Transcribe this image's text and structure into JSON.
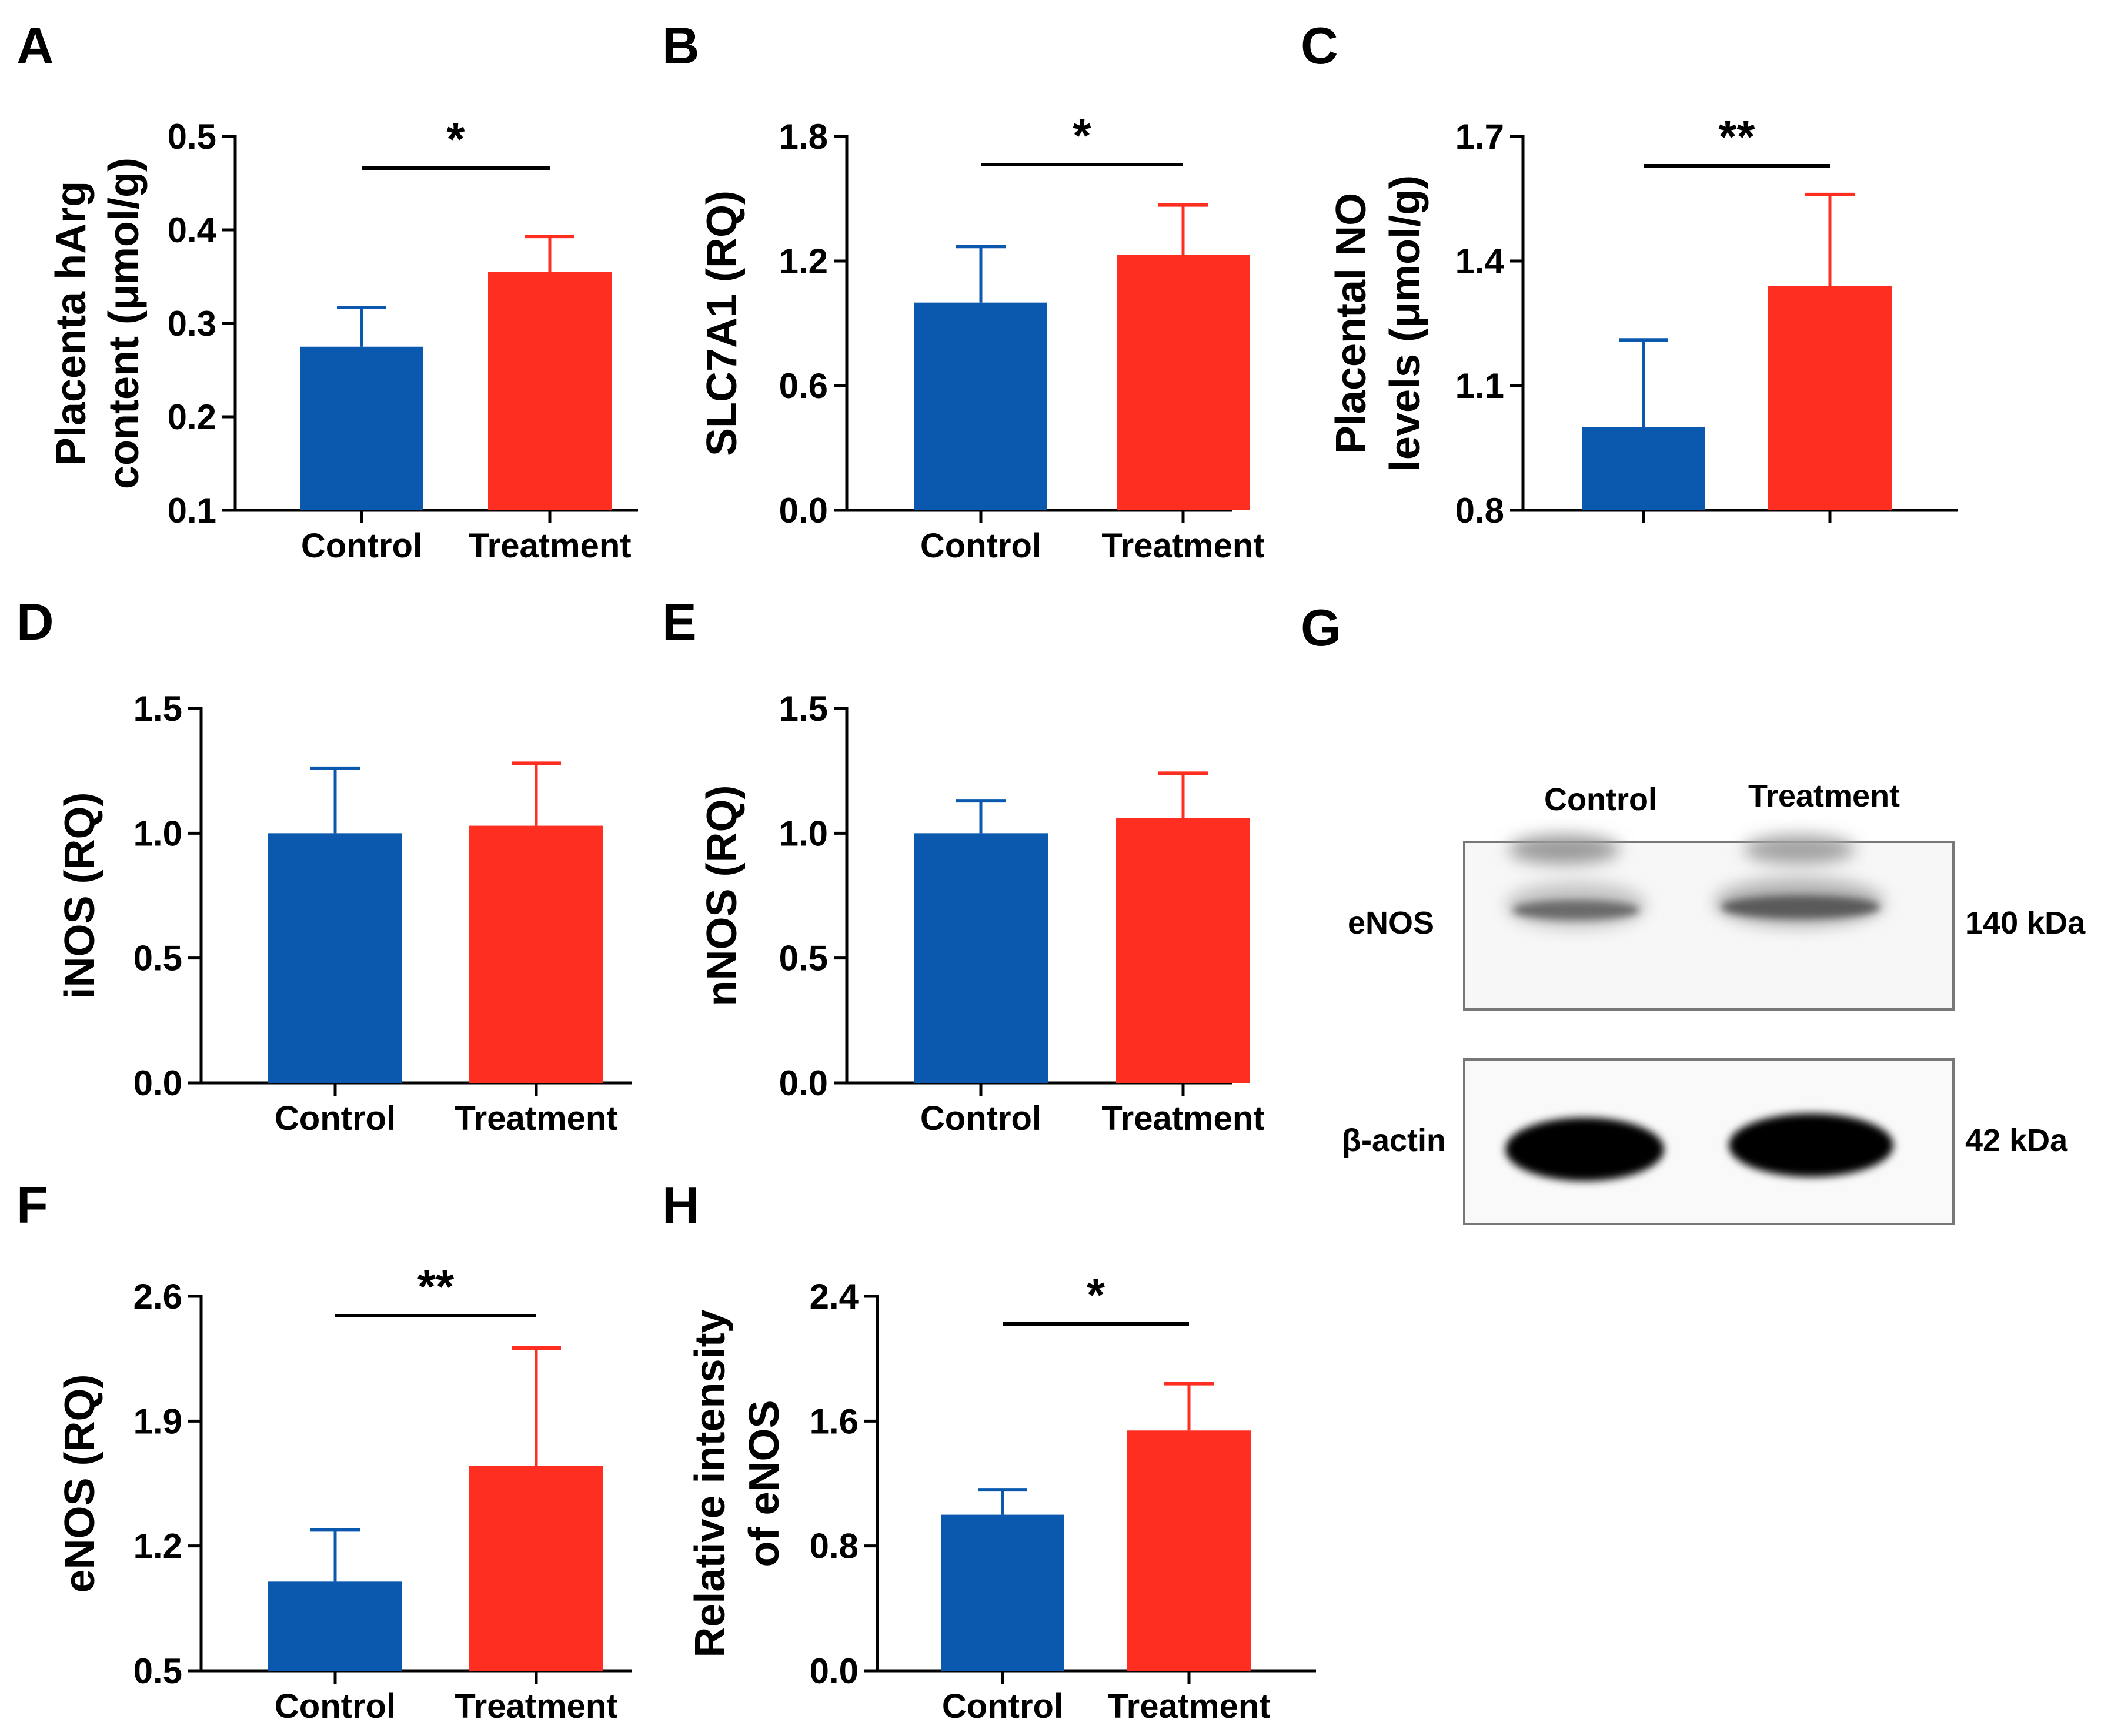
{
  "colors": {
    "control": "#0A59AE",
    "treatment": "#FE2F20",
    "axis": "#000000"
  },
  "blot": {
    "title_letter": "G",
    "lane_labels": [
      "Control",
      "Treatment"
    ],
    "rows": [
      {
        "protein": "eNOS",
        "size": "140 kDa"
      },
      {
        "protein": "β-actin",
        "size": "42 kDa"
      }
    ]
  },
  "chart_data": [
    {
      "panel": "A",
      "type": "bar",
      "ylabel_lines": [
        "Placenta hArg",
        "content (μmol/g)"
      ],
      "ylim": [
        0.1,
        0.5
      ],
      "ticks": [
        "0.1",
        "0.2",
        "0.3",
        "0.4",
        "0.5"
      ],
      "categories": [
        "Control",
        "Treatment"
      ],
      "values": [
        0.275,
        0.355
      ],
      "errors": [
        0.042,
        0.038
      ],
      "significance": "*"
    },
    {
      "panel": "B",
      "type": "bar",
      "ylabel_lines": [
        "SLC7A1 (RQ)"
      ],
      "ylim": [
        0.0,
        1.8
      ],
      "ticks": [
        "0.0",
        "0.6",
        "1.2",
        "1.8"
      ],
      "categories": [
        "Control",
        "Treatment"
      ],
      "values": [
        1.0,
        1.23
      ],
      "errors": [
        0.27,
        0.24
      ],
      "significance": "*"
    },
    {
      "panel": "C",
      "type": "bar",
      "ylabel_lines": [
        "Placental NO",
        "levels (μmol/g)"
      ],
      "ylim": [
        0.8,
        1.7
      ],
      "ticks": [
        "0.8",
        "1.1",
        "1.4",
        "1.7"
      ],
      "categories": [
        "",
        ""
      ],
      "values": [
        1.0,
        1.34
      ],
      "errors": [
        0.21,
        0.22
      ],
      "significance": "**"
    },
    {
      "panel": "D",
      "type": "bar",
      "ylabel_lines": [
        "iNOS (RQ)"
      ],
      "ylim": [
        0.0,
        1.5
      ],
      "ticks": [
        "0.0",
        "0.5",
        "1.0",
        "1.5"
      ],
      "categories": [
        "Control",
        "Treatment"
      ],
      "values": [
        1.0,
        1.03
      ],
      "errors": [
        0.26,
        0.25
      ],
      "significance": ""
    },
    {
      "panel": "E",
      "type": "bar",
      "ylabel_lines": [
        "nNOS (RQ)"
      ],
      "ylim": [
        0.0,
        1.5
      ],
      "ticks": [
        "0.0",
        "0.5",
        "1.0",
        "1.5"
      ],
      "categories": [
        "Control",
        "Treatment"
      ],
      "values": [
        1.0,
        1.06
      ],
      "errors": [
        0.13,
        0.18
      ],
      "significance": ""
    },
    {
      "panel": "F",
      "type": "bar",
      "ylabel_lines": [
        "eNOS (RQ)"
      ],
      "ylim": [
        0.5,
        2.6
      ],
      "ticks": [
        "0.5",
        "1.2",
        "1.9",
        "2.6"
      ],
      "categories": [
        "Control",
        "Treatment"
      ],
      "values": [
        1.0,
        1.65
      ],
      "errors": [
        0.29,
        0.66
      ],
      "significance": "**"
    },
    {
      "panel": "H",
      "type": "bar",
      "ylabel_lines": [
        "Relative intensity",
        "of eNOS"
      ],
      "ylim": [
        0.0,
        2.4
      ],
      "ticks": [
        "0.0",
        "0.8",
        "1.6",
        "2.4"
      ],
      "categories": [
        "Control",
        "Treatment"
      ],
      "values": [
        1.0,
        1.54
      ],
      "errors": [
        0.16,
        0.3
      ],
      "significance": "*"
    }
  ]
}
